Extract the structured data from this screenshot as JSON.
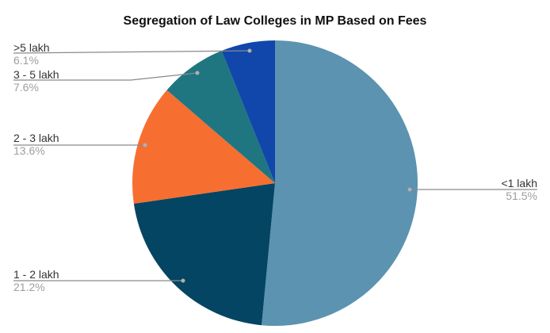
{
  "chart_data": {
    "type": "pie",
    "title": "Segregation of Law Colleges in MP Based on Fees",
    "categories": [
      "<1 lakh",
      "1 - 2 lakh",
      "2 - 3 lakh",
      "3 - 5 lakh",
      ">5 lakh"
    ],
    "values": [
      51.5,
      21.2,
      13.6,
      7.6,
      6.1
    ],
    "labels_pct": [
      "51.5%",
      "21.2%",
      "13.6%",
      "7.6%",
      "6.1%"
    ],
    "colors": [
      "#5b93b0",
      "#034562",
      "#f76e31",
      "#1f7681",
      "#1146ab"
    ],
    "start_angle": "top, clockwise",
    "legend": "labeled callouts"
  }
}
